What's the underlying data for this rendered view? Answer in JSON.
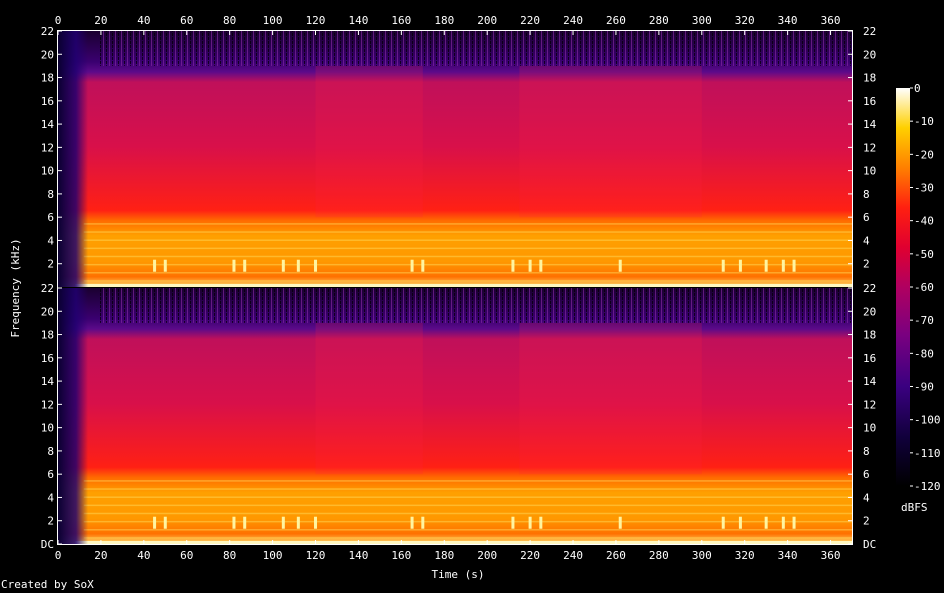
{
  "chart_data": {
    "type": "heatmap",
    "title": "",
    "xlabel": "Time (s)",
    "ylabel": "Frequency (kHz)",
    "xlim": [
      0,
      370
    ],
    "ylim": [
      0,
      22
    ],
    "x_ticks": [
      "0",
      "20",
      "40",
      "60",
      "80",
      "100",
      "120",
      "140",
      "160",
      "180",
      "200",
      "220",
      "240",
      "260",
      "280",
      "300",
      "320",
      "340",
      "360"
    ],
    "y_ticks_top": [
      "22",
      "20",
      "18",
      "16",
      "14",
      "12",
      "10",
      "8",
      "6",
      "4",
      "2"
    ],
    "y_ticks_bottom": [
      "22",
      "20",
      "18",
      "16",
      "14",
      "12",
      "10",
      "8",
      "6",
      "4",
      "2",
      "DC"
    ],
    "y_ticks_right_top": [
      "22",
      "20",
      "18",
      "16",
      "14",
      "12",
      "10",
      "8",
      "6",
      "4",
      "2"
    ],
    "y_ticks_right_bottom": [
      "22",
      "20",
      "18",
      "16",
      "14",
      "12",
      "10",
      "8",
      "6",
      "4",
      "2",
      "DC"
    ],
    "channels": 2,
    "colorbar": {
      "label": "dBFS",
      "ticks": [
        "0",
        "-10",
        "-20",
        "-30",
        "-40",
        "-50",
        "-60",
        "-70",
        "-80",
        "-90",
        "-100",
        "-110",
        "-120"
      ],
      "range": [
        -120,
        0
      ]
    },
    "regions": [
      {
        "t_start": 0,
        "t_end": 10,
        "description_level": "low energy fade-in"
      },
      {
        "t_start": 10,
        "t_end": 370,
        "band_khz": [
          0,
          6
        ],
        "level_dbfs": -30
      },
      {
        "t_start": 10,
        "t_end": 370,
        "band_khz": [
          6,
          19
        ],
        "level_dbfs": -55
      },
      {
        "t_start": 10,
        "t_end": 370,
        "band_khz": [
          19,
          22
        ],
        "level_dbfs": -100
      }
    ],
    "bright_bursts_s": [
      45,
      50,
      82,
      87,
      105,
      112,
      120,
      165,
      170,
      212,
      220,
      225,
      262,
      310,
      318,
      330,
      338,
      343
    ]
  },
  "footer": {
    "credit": "Created by SoX"
  }
}
